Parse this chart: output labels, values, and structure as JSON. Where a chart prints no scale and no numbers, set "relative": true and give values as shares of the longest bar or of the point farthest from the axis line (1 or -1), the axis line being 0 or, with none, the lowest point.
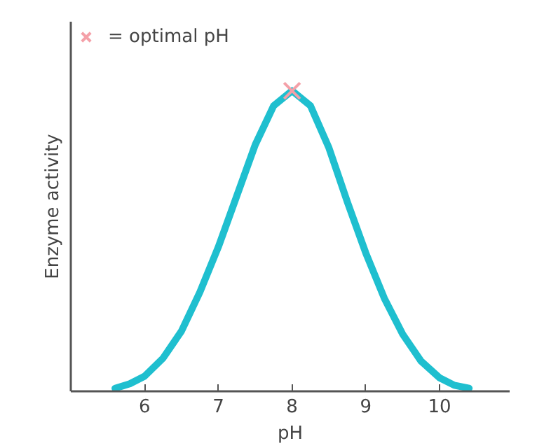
{
  "chart_data": {
    "type": "line",
    "xlabel": "pH",
    "ylabel": "Enzyme activity",
    "relative": true,
    "xlim": [
      5,
      10.95
    ],
    "xticks": [
      6,
      7,
      8,
      9,
      10
    ],
    "grid": false,
    "legend": "top left",
    "series": [
      {
        "color": "#1fbfcf",
        "marker": "none",
        "line_style": "solid",
        "x": [
          5.6,
          5.8,
          6,
          6.25,
          6.5,
          6.75,
          7,
          7.25,
          7.5,
          7.75,
          8,
          8.25,
          8.5,
          8.75,
          9,
          9.25,
          9.5,
          9.75,
          10,
          10.2,
          10.4
        ],
        "values": [
          0.01,
          0.025,
          0.05,
          0.11,
          0.2,
          0.33,
          0.48,
          0.65,
          0.82,
          0.95,
          1,
          0.95,
          0.81,
          0.63,
          0.46,
          0.31,
          0.19,
          0.1,
          0.045,
          0.02,
          0.01
        ]
      },
      {
        "type": "scatter",
        "name": "= optimal pH",
        "color": "#f4a0a8",
        "marker": "cross",
        "x": [
          8
        ],
        "values": [
          1
        ]
      }
    ]
  }
}
